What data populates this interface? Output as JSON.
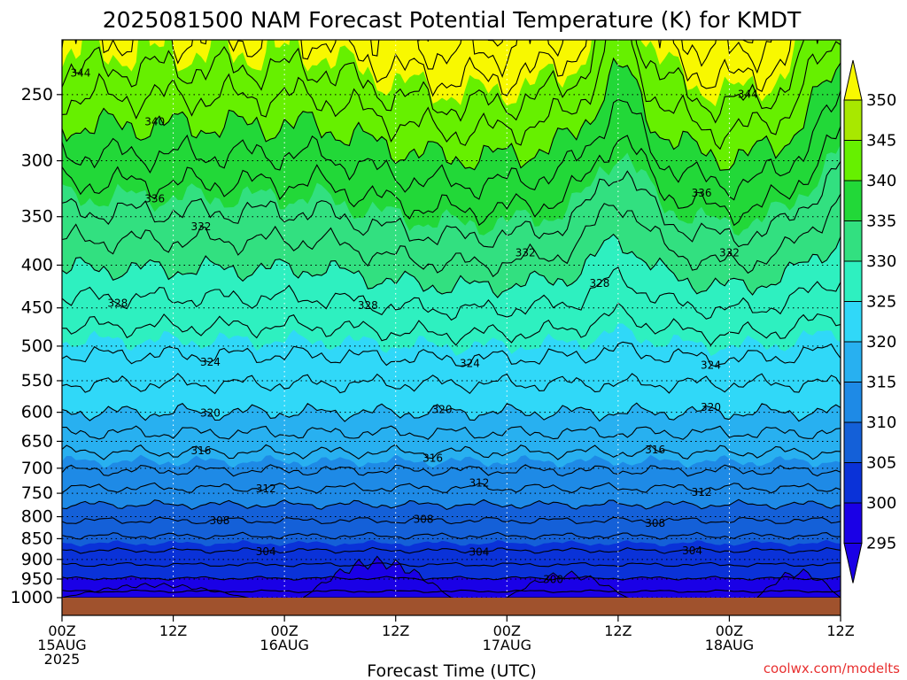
{
  "chart_data": {
    "type": "heatmap",
    "title": "2025081500 NAM Forecast Potential Temperature (K) for KMDT",
    "xlabel": "Forecast Time (UTC)",
    "ylabel": "",
    "credit": "coolwx.com/modelts",
    "x_ticks": [
      {
        "line1": "00Z",
        "line2": "15AUG",
        "line3": "2025"
      },
      {
        "line1": "12Z",
        "line2": "",
        "line3": ""
      },
      {
        "line1": "00Z",
        "line2": "16AUG",
        "line3": ""
      },
      {
        "line1": "12Z",
        "line2": "",
        "line3": ""
      },
      {
        "line1": "00Z",
        "line2": "17AUG",
        "line3": ""
      },
      {
        "line1": "12Z",
        "line2": "",
        "line3": ""
      },
      {
        "line1": "00Z",
        "line2": "18AUG",
        "line3": ""
      },
      {
        "line1": "12Z",
        "line2": "",
        "line3": ""
      }
    ],
    "x_hours": [
      0,
      12,
      24,
      36,
      48,
      60,
      72,
      84
    ],
    "y_axis": "pressure (hPa), inverted, log",
    "y_ticks": [
      250,
      300,
      350,
      400,
      450,
      500,
      550,
      600,
      650,
      700,
      750,
      800,
      850,
      900,
      950,
      1000
    ],
    "colorbar": {
      "levels": [
        295,
        300,
        305,
        310,
        315,
        320,
        325,
        330,
        335,
        340,
        345,
        350
      ],
      "colors": [
        "#1a00e6",
        "#0a32d8",
        "#1460d8",
        "#1e8ae6",
        "#28b0f0",
        "#30d8f8",
        "#2ef0c0",
        "#32e080",
        "#22d838",
        "#66f000",
        "#a8e800",
        "#f8f800"
      ],
      "under_color": "#1a00e6",
      "over_color": "#f8f800"
    },
    "contour_interval": 2,
    "labeled_contours": [
      {
        "value": "344",
        "hours": [
          2,
          74
        ]
      },
      {
        "value": "340",
        "hours": [
          10
        ]
      },
      {
        "value": "336",
        "hours": [
          10,
          69
        ]
      },
      {
        "value": "332",
        "hours": [
          15,
          50,
          72
        ]
      },
      {
        "value": "328",
        "hours": [
          6,
          33,
          58
        ]
      },
      {
        "value": "324",
        "hours": [
          16,
          44,
          70
        ]
      },
      {
        "value": "320",
        "hours": [
          16,
          41,
          70
        ]
      },
      {
        "value": "316",
        "hours": [
          15,
          40,
          64
        ]
      },
      {
        "value": "312",
        "hours": [
          22,
          45,
          69
        ]
      },
      {
        "value": "308",
        "hours": [
          17,
          39,
          64
        ]
      },
      {
        "value": "304",
        "hours": [
          22,
          45,
          68
        ]
      },
      {
        "value": "300",
        "hours": [
          53
        ]
      }
    ],
    "surface_color": "#a0522d",
    "grid": "dotted"
  }
}
